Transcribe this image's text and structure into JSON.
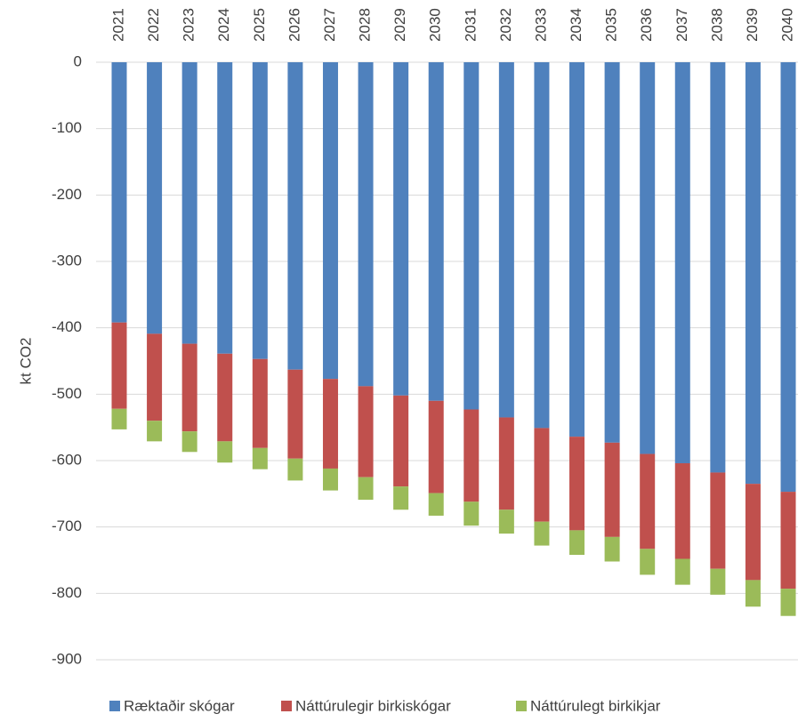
{
  "chart_data": {
    "type": "stacked_bar",
    "y_label": "kt CO2",
    "categories": [
      "2021",
      "2022",
      "2023",
      "2024",
      "2025",
      "2026",
      "2027",
      "2028",
      "2029",
      "2030",
      "2031",
      "2032",
      "2033",
      "2034",
      "2035",
      "2036",
      "2037",
      "2038",
      "2039",
      "2040"
    ],
    "series": [
      {
        "name": "Ræktaðir skógar",
        "color": "#4f81bd",
        "values": [
          -392,
          -409,
          -424,
          -439,
          -447,
          -463,
          -477,
          -488,
          -502,
          -510,
          -523,
          -535,
          -551,
          -564,
          -573,
          -590,
          -604,
          -618,
          -635,
          -647
        ]
      },
      {
        "name": "Náttúrulegir birkiskógar",
        "color": "#c0504d",
        "values": [
          -130,
          -131,
          -132,
          -132,
          -134,
          -134,
          -135,
          -137,
          -137,
          -139,
          -139,
          -139,
          -141,
          -141,
          -142,
          -143,
          -144,
          -145,
          -145,
          -146
        ]
      },
      {
        "name": "Náttúrulegt birkikjar",
        "color": "#9bbb59",
        "values": [
          -31,
          -31,
          -31,
          -32,
          -32,
          -33,
          -33,
          -34,
          -35,
          -34,
          -36,
          -36,
          -36,
          -37,
          -37,
          -39,
          -39,
          -39,
          -40,
          -41
        ]
      }
    ],
    "ylim": [
      -900,
      0
    ],
    "yticks": [
      0,
      -100,
      -200,
      -300,
      -400,
      -500,
      -600,
      -700,
      -800,
      -900
    ],
    "grid": true,
    "legend": "bottom"
  }
}
